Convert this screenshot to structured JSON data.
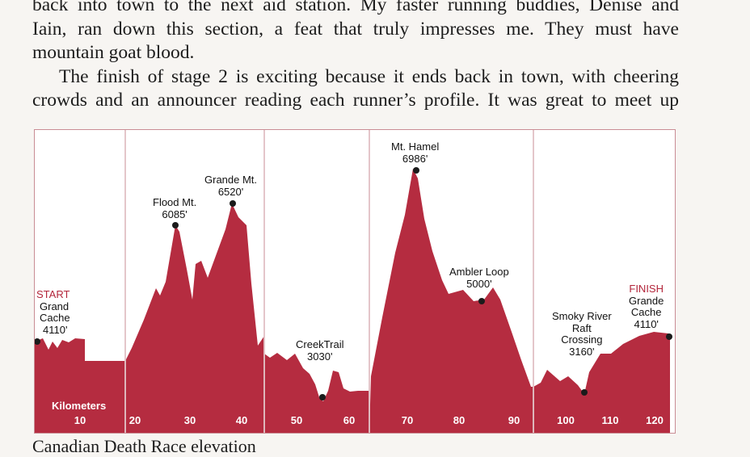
{
  "text": {
    "line1": "back into town to the next aid station. My faster running buddies, Denise and",
    "line2": "Iain, ran down this section, a feat that truly impresses me. They must have",
    "line3": "mountain goat blood.",
    "line4": "The finish of stage 2 is exciting because it ends back in town, with cheering",
    "line5": "crowds and an announcer reading each runner’s profile. It was great to meet up",
    "caption": "Canadian Death Race elevation"
  },
  "colors": {
    "fill": "#b52c40",
    "divider": "#c98c94",
    "accent_text": "#b3263b",
    "paper": "#f7f5f2"
  },
  "chart_data": {
    "type": "area",
    "xlabel": "Kilometers",
    "x_ticks": [
      "10",
      "20",
      "30",
      "40",
      "50",
      "60",
      "70",
      "80",
      "90",
      "100",
      "110",
      "120"
    ],
    "annotations": [
      {
        "title": "START",
        "lines": [
          "Grand",
          "Cache",
          "4110'"
        ]
      },
      {
        "title": "",
        "lines": [
          "Flood Mt.",
          "6085'"
        ]
      },
      {
        "title": "",
        "lines": [
          "Grande Mt.",
          "6520'"
        ]
      },
      {
        "title": "",
        "lines": [
          "CreekTrail",
          "3030'"
        ]
      },
      {
        "title": "",
        "lines": [
          "Mt. Hamel",
          "6986'"
        ]
      },
      {
        "title": "",
        "lines": [
          "Ambler Loop",
          "5000'"
        ]
      },
      {
        "title": "",
        "lines": [
          "Smoky River",
          "Raft",
          "Crossing",
          "3160'"
        ]
      },
      {
        "title": "FINISH",
        "lines": [
          "Grande",
          "Cache",
          "4110'"
        ]
      }
    ]
  }
}
